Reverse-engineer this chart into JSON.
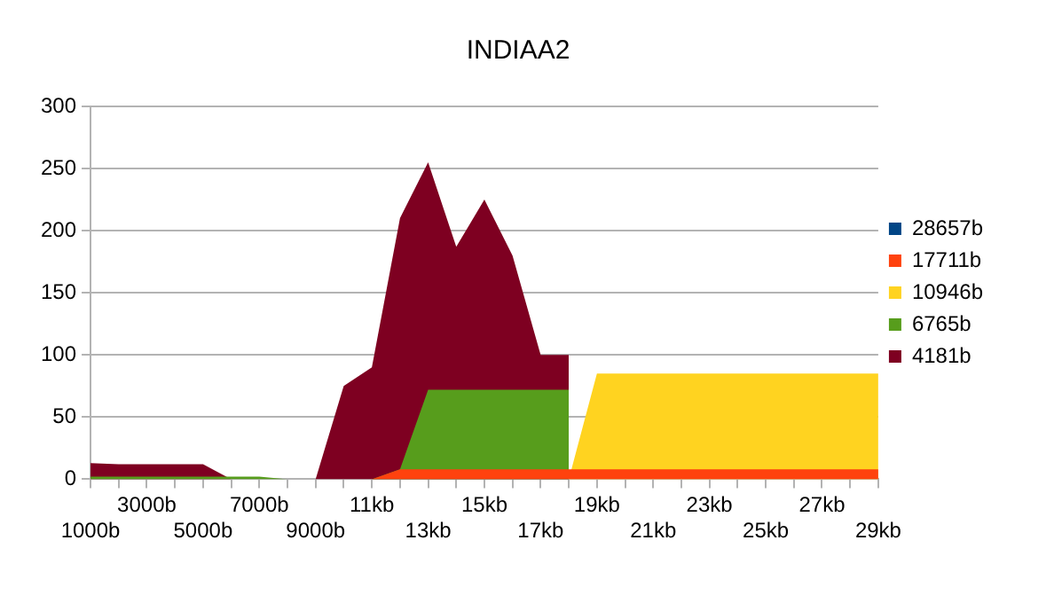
{
  "chart_data": {
    "type": "area",
    "title": "INDIAA2",
    "categories": [
      "1000b",
      null,
      "3000b",
      null,
      "5000b",
      null,
      "7000b",
      null,
      "9000b",
      null,
      "11kb",
      null,
      "13kb",
      null,
      "15kb",
      null,
      "17kb",
      null,
      "19kb",
      null,
      "21kb",
      null,
      "23kb",
      null,
      "25kb",
      null,
      "27kb",
      null,
      "29kb"
    ],
    "series": [
      {
        "name": "28657b",
        "color": "#004586",
        "values": [
          null,
          null,
          null,
          null,
          null,
          null,
          null,
          null,
          null,
          null,
          null,
          null,
          null,
          null,
          null,
          null,
          null,
          null,
          null,
          null,
          null,
          null,
          null,
          null,
          null,
          null,
          null,
          null,
          null
        ]
      },
      {
        "name": "17711b",
        "color": "#ff420e",
        "values": [
          0,
          0,
          0,
          0,
          0,
          0,
          0,
          0,
          0,
          0,
          0,
          8,
          8,
          8,
          8,
          8,
          8,
          8,
          8,
          8,
          8,
          8,
          8,
          8,
          8,
          8,
          8,
          8,
          8
        ]
      },
      {
        "name": "10946b",
        "color": "#ffd320",
        "values": [
          0,
          0,
          0,
          0,
          0,
          0,
          0,
          0,
          0,
          0,
          0,
          0,
          0,
          0,
          0,
          0,
          0,
          0,
          85,
          85,
          85,
          85,
          85,
          85,
          85,
          85,
          85,
          85,
          85
        ]
      },
      {
        "name": "6765b",
        "color": "#579d1c",
        "values": [
          2,
          2,
          2,
          2,
          2,
          2,
          2,
          0,
          0,
          0,
          0,
          8,
          72,
          72,
          72,
          72,
          72,
          72,
          null,
          null,
          null,
          null,
          null,
          null,
          null,
          null,
          null,
          null,
          null
        ]
      },
      {
        "name": "4181b",
        "color": "#7e0021",
        "values": [
          13,
          12,
          12,
          12,
          12,
          0,
          0,
          0,
          0,
          75,
          90,
          210,
          255,
          187,
          225,
          180,
          100,
          100,
          null,
          null,
          null,
          null,
          null,
          null,
          null,
          null,
          null,
          null,
          null
        ]
      }
    ],
    "ylim": [
      0,
      300
    ],
    "yticks": [
      0,
      50,
      100,
      150,
      200,
      250,
      300
    ],
    "grid": "y",
    "legend": "right"
  }
}
